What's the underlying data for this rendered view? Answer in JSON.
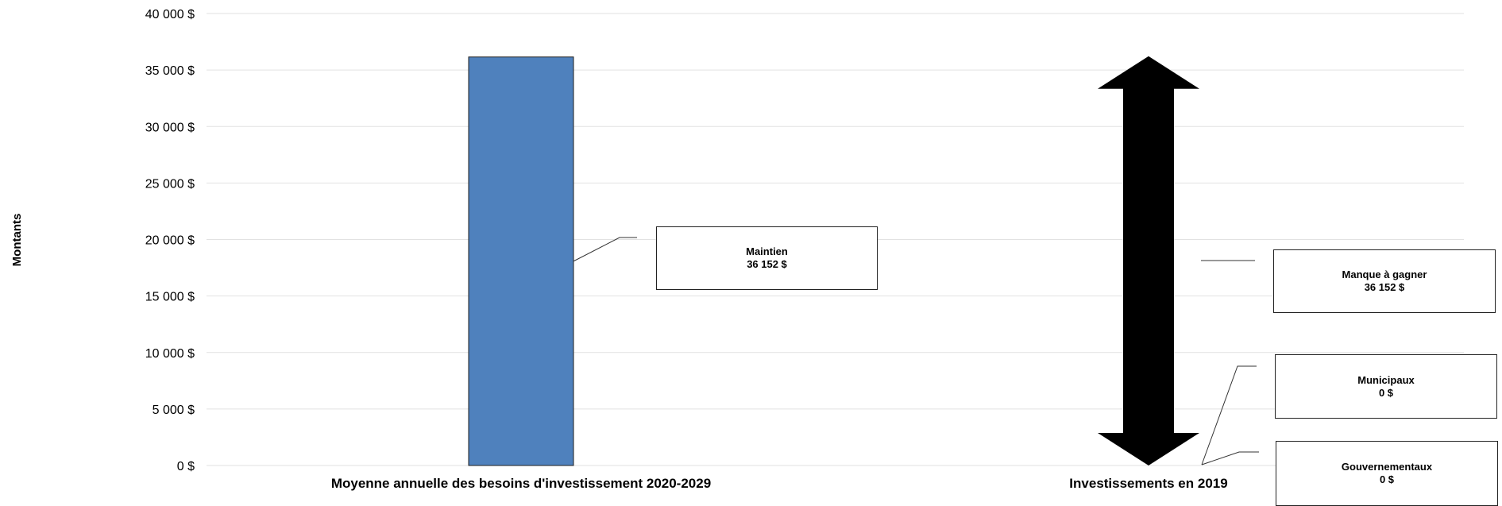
{
  "chart_data": {
    "type": "bar",
    "title": "",
    "ylabel": "Montants",
    "xlabel": "",
    "ylim": [
      0,
      40000
    ],
    "y_ticks": [
      {
        "value": 0,
        "label": "0 $"
      },
      {
        "value": 5000,
        "label": "5 000 $"
      },
      {
        "value": 10000,
        "label": "10 000 $"
      },
      {
        "value": 15000,
        "label": "15 000 $"
      },
      {
        "value": 20000,
        "label": "20 000 $"
      },
      {
        "value": 25000,
        "label": "25 000 $"
      },
      {
        "value": 30000,
        "label": "30 000 $"
      },
      {
        "value": 35000,
        "label": "35 000 $"
      },
      {
        "value": 40000,
        "label": "40 000 $"
      }
    ],
    "grid": true,
    "categories": [
      "Moyenne annuelle des besoins d'investissement 2020-2029",
      "Investissements en 2019"
    ],
    "bar": {
      "category": 0,
      "value": 36152,
      "color": "#4f81bd"
    },
    "gap_arrow": {
      "category": 1,
      "from": 0,
      "to": 36152,
      "color": "#000000"
    },
    "callouts": [
      {
        "name": "Maintien",
        "value_label": "36 152 $",
        "value": 36152
      },
      {
        "name": "Manque à gagner",
        "value_label": "36 152 $",
        "value": 36152
      },
      {
        "name": "Municipaux",
        "value_label": "0 $",
        "value": 0
      },
      {
        "name": "Gouvernementaux",
        "value_label": "0 $",
        "value": 0
      }
    ]
  }
}
